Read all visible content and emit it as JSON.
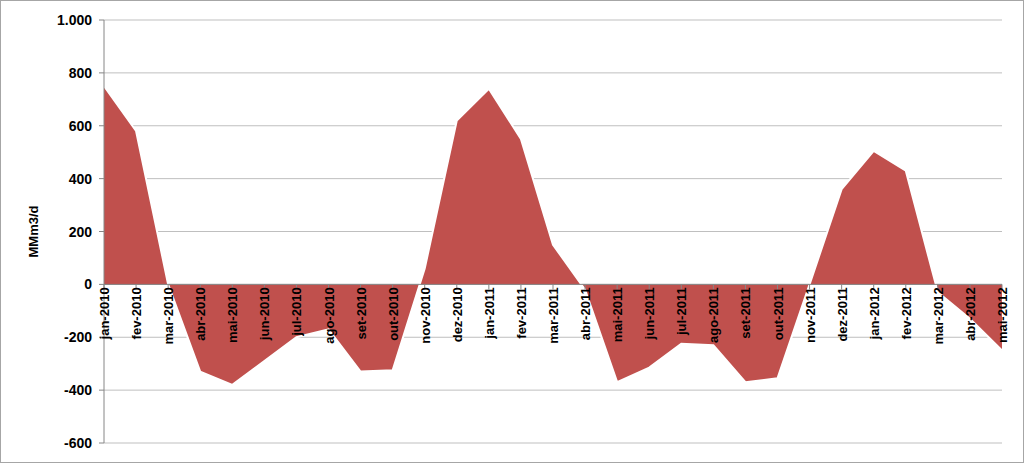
{
  "chart_data": {
    "type": "area",
    "ylabel": "MMm3/d",
    "categories": [
      "jan-2010",
      "fev-2010",
      "mar-2010",
      "abr-2010",
      "mai-2010",
      "jun-2010",
      "jul-2010",
      "ago-2010",
      "set-2010",
      "out-2010",
      "nov-2010",
      "dez-2010",
      "jan-2011",
      "fev-2011",
      "mar-2011",
      "abr-2011",
      "mai-2011",
      "jun-2011",
      "jul-2011",
      "ago-2011",
      "set-2011",
      "out-2011",
      "nov-2011",
      "dez-2011",
      "jan-2012",
      "fev-2012",
      "mar-2012",
      "abr-2012",
      "mai-2012"
    ],
    "values": [
      750,
      580,
      0,
      -330,
      -380,
      -290,
      -200,
      -170,
      -330,
      -325,
      60,
      620,
      740,
      550,
      150,
      -20,
      -370,
      -315,
      -225,
      -230,
      -370,
      -355,
      0,
      360,
      505,
      430,
      -30,
      -130,
      -250
    ],
    "color": "#c0504d",
    "ylim": [
      -600,
      1000
    ],
    "yticks": [
      -600,
      -400,
      -200,
      0,
      200,
      400,
      600,
      800,
      {
        "value": 1000,
        "label": "1.000"
      }
    ],
    "grid": true
  }
}
